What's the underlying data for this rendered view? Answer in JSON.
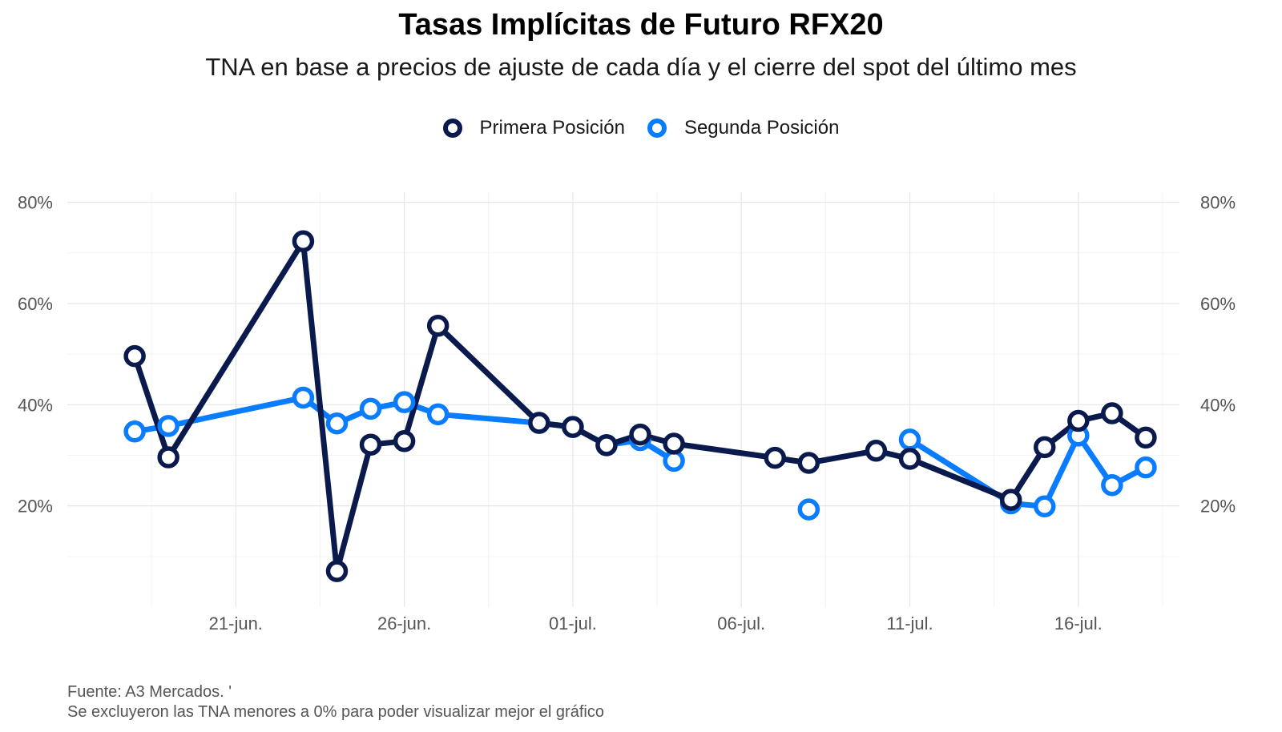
{
  "chart_data": {
    "type": "line",
    "title": "Tasas Implícitas de Futuro RFX20",
    "subtitle": "TNA en base a precios de ajuste de cada día y el cierre del spot del último mes",
    "caption_lines": [
      "Fuente: A3 Mercados. '",
      "Se excluyeron las TNA menores a 0% para poder visualizar mejor el gráfico"
    ],
    "xlabel": "",
    "ylabel": "",
    "x_range": [
      "2024-06-16",
      "2024-07-19"
    ],
    "y_range": [
      0,
      82
    ],
    "grid": true,
    "legend_position": "top",
    "x_ticks": [
      {
        "date": "2024-06-21",
        "label": "21-jun."
      },
      {
        "date": "2024-06-26",
        "label": "26-jun."
      },
      {
        "date": "2024-07-01",
        "label": "01-jul."
      },
      {
        "date": "2024-07-06",
        "label": "06-jul."
      },
      {
        "date": "2024-07-11",
        "label": "11-jul."
      },
      {
        "date": "2024-07-16",
        "label": "16-jul."
      }
    ],
    "y_ticks": [
      {
        "value": 20,
        "label": "20%"
      },
      {
        "value": 40,
        "label": "40%"
      },
      {
        "value": 60,
        "label": "60%"
      },
      {
        "value": 80,
        "label": "80%"
      }
    ],
    "series": [
      {
        "name": "Segunda Posición",
        "color": "#0a7cff",
        "points": [
          {
            "date": "2024-06-18",
            "y": 34.7
          },
          {
            "date": "2024-06-19",
            "y": 35.8
          },
          {
            "date": "2024-06-23",
            "y": 41.4
          },
          {
            "date": "2024-06-24",
            "y": 36.3
          },
          {
            "date": "2024-06-25",
            "y": 39.2
          },
          {
            "date": "2024-06-26",
            "y": 40.5
          },
          {
            "date": "2024-06-27",
            "y": 38.1
          },
          {
            "date": "2024-06-30",
            "y": 36.4
          },
          {
            "date": "2024-07-01",
            "y": 35.6
          },
          {
            "date": "2024-07-02",
            "y": 32.0
          },
          {
            "date": "2024-07-03",
            "y": 33.0
          },
          {
            "date": "2024-07-04",
            "y": 28.9
          },
          {
            "date": "2024-07-08",
            "y": 19.3,
            "break_before": true
          },
          {
            "date": "2024-07-11",
            "y": 33.1,
            "break_before": true
          },
          {
            "date": "2024-07-14",
            "y": 20.5
          },
          {
            "date": "2024-07-15",
            "y": 19.9
          },
          {
            "date": "2024-07-16",
            "y": 33.9
          },
          {
            "date": "2024-07-17",
            "y": 24.1
          },
          {
            "date": "2024-07-18",
            "y": 27.6
          }
        ]
      },
      {
        "name": "Primera Posición",
        "color": "#0a1a4d",
        "points": [
          {
            "date": "2024-06-18",
            "y": 49.6
          },
          {
            "date": "2024-06-19",
            "y": 29.6
          },
          {
            "date": "2024-06-23",
            "y": 72.3
          },
          {
            "date": "2024-06-24",
            "y": 7.1
          },
          {
            "date": "2024-06-25",
            "y": 32.1
          },
          {
            "date": "2024-06-26",
            "y": 32.8
          },
          {
            "date": "2024-06-27",
            "y": 55.6
          },
          {
            "date": "2024-06-30",
            "y": 36.4
          },
          {
            "date": "2024-07-01",
            "y": 35.6
          },
          {
            "date": "2024-07-02",
            "y": 32.0
          },
          {
            "date": "2024-07-03",
            "y": 34.1
          },
          {
            "date": "2024-07-04",
            "y": 32.3
          },
          {
            "date": "2024-07-07",
            "y": 29.5
          },
          {
            "date": "2024-07-08",
            "y": 28.5
          },
          {
            "date": "2024-07-10",
            "y": 30.9
          },
          {
            "date": "2024-07-11",
            "y": 29.3
          },
          {
            "date": "2024-07-14",
            "y": 21.2
          },
          {
            "date": "2024-07-15",
            "y": 31.6
          },
          {
            "date": "2024-07-16",
            "y": 36.8
          },
          {
            "date": "2024-07-17",
            "y": 38.3
          },
          {
            "date": "2024-07-18",
            "y": 33.5
          }
        ]
      }
    ]
  }
}
